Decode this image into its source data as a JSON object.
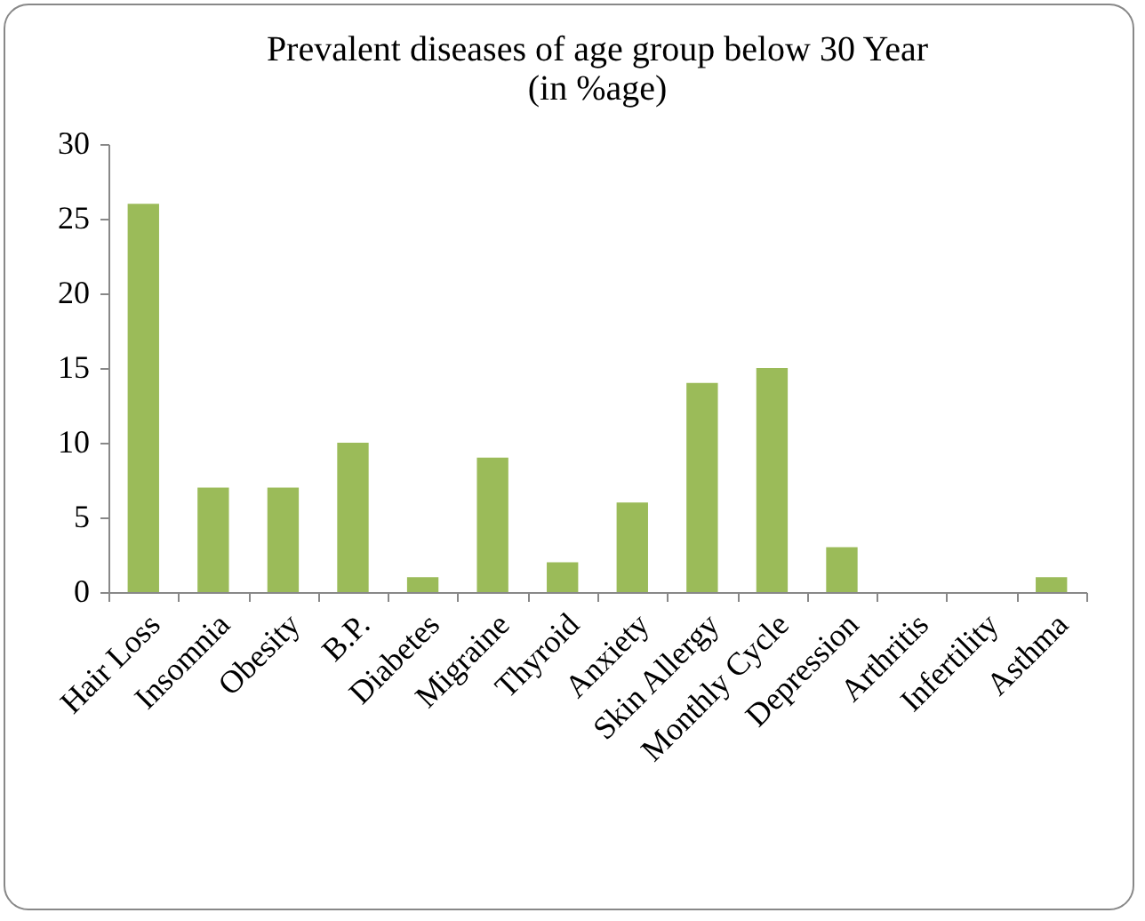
{
  "chart_data": {
    "type": "bar",
    "title": "Prevalent diseases of age group below 30 Year",
    "subtitle": "(in %age)",
    "categories": [
      "Hair Loss",
      "Insomnia",
      "Obesity",
      "B.P.",
      "Diabetes",
      "Migraine",
      "Thyroid",
      "Anxiety",
      "Skin Allergy",
      "Monthly Cycle",
      "Depression",
      "Arthritis",
      "Infertility",
      "Asthma"
    ],
    "values": [
      26,
      7,
      7,
      10,
      1,
      9,
      2,
      6,
      14,
      15,
      3,
      0,
      0,
      1
    ],
    "color": "#9bbb59",
    "ylim": [
      0,
      30
    ],
    "yticks": [
      0,
      5,
      10,
      15,
      20,
      25,
      30
    ],
    "grid": false
  }
}
